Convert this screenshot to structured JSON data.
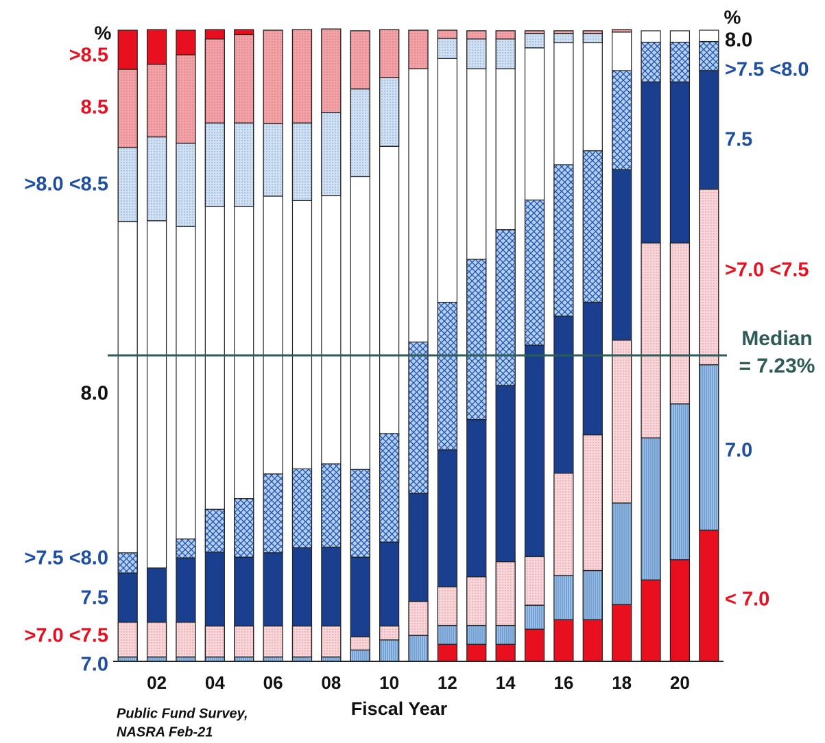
{
  "chart_data": {
    "type": "stacked_bar",
    "x_label": "Fiscal Year",
    "source": [
      "Public Fund Survey,",
      "NASRA Feb-21"
    ],
    "unit_symbol": "%",
    "median_label": [
      "Median",
      "= 7.23%"
    ],
    "median_color": "#2e5b57",
    "categories": [
      null,
      "02",
      null,
      "04",
      null,
      "06",
      null,
      "08",
      null,
      "10",
      null,
      "12",
      null,
      "14",
      null,
      "16",
      null,
      "18",
      null,
      "20",
      null
    ],
    "ylim": [
      0,
      100
    ],
    "series": [
      {
        "name": "< 7.0",
        "color": "#e8101f",
        "pattern": "solid",
        "label_color": "#e8101f",
        "values": [
          0,
          0,
          0,
          0,
          0,
          0,
          0,
          0,
          0,
          0,
          0,
          2.7,
          2.7,
          2.7,
          5.1,
          6.6,
          6.6,
          9,
          12.9,
          16.1,
          20.8
        ]
      },
      {
        "name": "7.0",
        "color": "#9ec3e8",
        "pattern": "vstripes",
        "label_color": "#1f4fa0",
        "values": [
          0.7,
          0.7,
          0.7,
          0.7,
          0.7,
          0.7,
          0.7,
          0.7,
          1.8,
          3.4,
          4.1,
          3,
          3,
          3,
          3.8,
          7,
          7.8,
          16.1,
          22.5,
          24.7,
          26.2
        ]
      },
      {
        "name": ">7.0 <7.5",
        "color": "#f8d6d9",
        "pattern": "dots",
        "label_color": "#e8101f",
        "values": [
          5.5,
          5.5,
          5.5,
          4.9,
          4.9,
          4.9,
          4.9,
          4.9,
          2.1,
          2.2,
          5.4,
          6.1,
          7.7,
          10.1,
          7.7,
          16.2,
          21.5,
          25.8,
          30.9,
          25.5,
          27.8
        ]
      },
      {
        "name": "7.5",
        "color": "#1a3f8f",
        "pattern": "solid",
        "label_color": "#1f4fa0",
        "values": [
          7.8,
          8.6,
          10.2,
          11.7,
          10.9,
          11.6,
          12.4,
          12.5,
          12.6,
          13.3,
          17.1,
          21.7,
          24.9,
          27.9,
          33.5,
          24.9,
          21,
          27,
          25.5,
          25.5,
          18.8
        ]
      },
      {
        "name": ">7.5 <8.0",
        "color": "#b5d0ee",
        "pattern": "cross",
        "label_color": "#1f4fa0",
        "values": [
          3.2,
          0,
          3,
          6.8,
          9.3,
          12.5,
          12.5,
          13.2,
          13.9,
          17.2,
          24,
          23.4,
          25.4,
          24.7,
          23,
          24,
          24,
          15.7,
          6.3,
          6.3,
          4.6
        ]
      },
      {
        "name": "8.0",
        "color": "#ffffff",
        "pattern": "solid",
        "label_color": "#111111",
        "values": [
          52.5,
          55,
          49.5,
          48,
          46.3,
          44,
          42.5,
          42.5,
          46.4,
          45.5,
          43.3,
          38.6,
          30.2,
          25.5,
          24.1,
          19.3,
          17.1,
          6.1,
          1.8,
          1.8,
          1.8
        ]
      },
      {
        "name": ">8.0 <8.5",
        "color": "#cfe0f2",
        "pattern": "dots",
        "label_color": "#1f4fa0",
        "values": [
          11.7,
          13.3,
          13.2,
          13.2,
          13.2,
          11.5,
          12.3,
          13.2,
          13.9,
          10.9,
          0,
          3.2,
          4.7,
          4.7,
          2.3,
          1.5,
          1.5,
          0,
          0,
          0,
          0
        ]
      },
      {
        "name": "8.5",
        "color": "#f2a3a8",
        "pattern": "dots",
        "label_color": "#e8101f",
        "values": [
          12.4,
          11.5,
          14,
          13.3,
          14,
          14.8,
          14.8,
          13.2,
          9.2,
          7.6,
          6.1,
          1.3,
          1.3,
          1.3,
          0.4,
          0.4,
          0.4,
          0.4,
          0,
          0,
          0
        ]
      },
      {
        "name": ">8.5",
        "color": "#e8101f",
        "pattern": "solid",
        "label_color": "#e8101f",
        "values": [
          6.2,
          5.5,
          3.9,
          1.5,
          0.8,
          0,
          0,
          0,
          0,
          0,
          0,
          0,
          0,
          0,
          0,
          0,
          0,
          0,
          0,
          0,
          0
        ]
      }
    ]
  }
}
